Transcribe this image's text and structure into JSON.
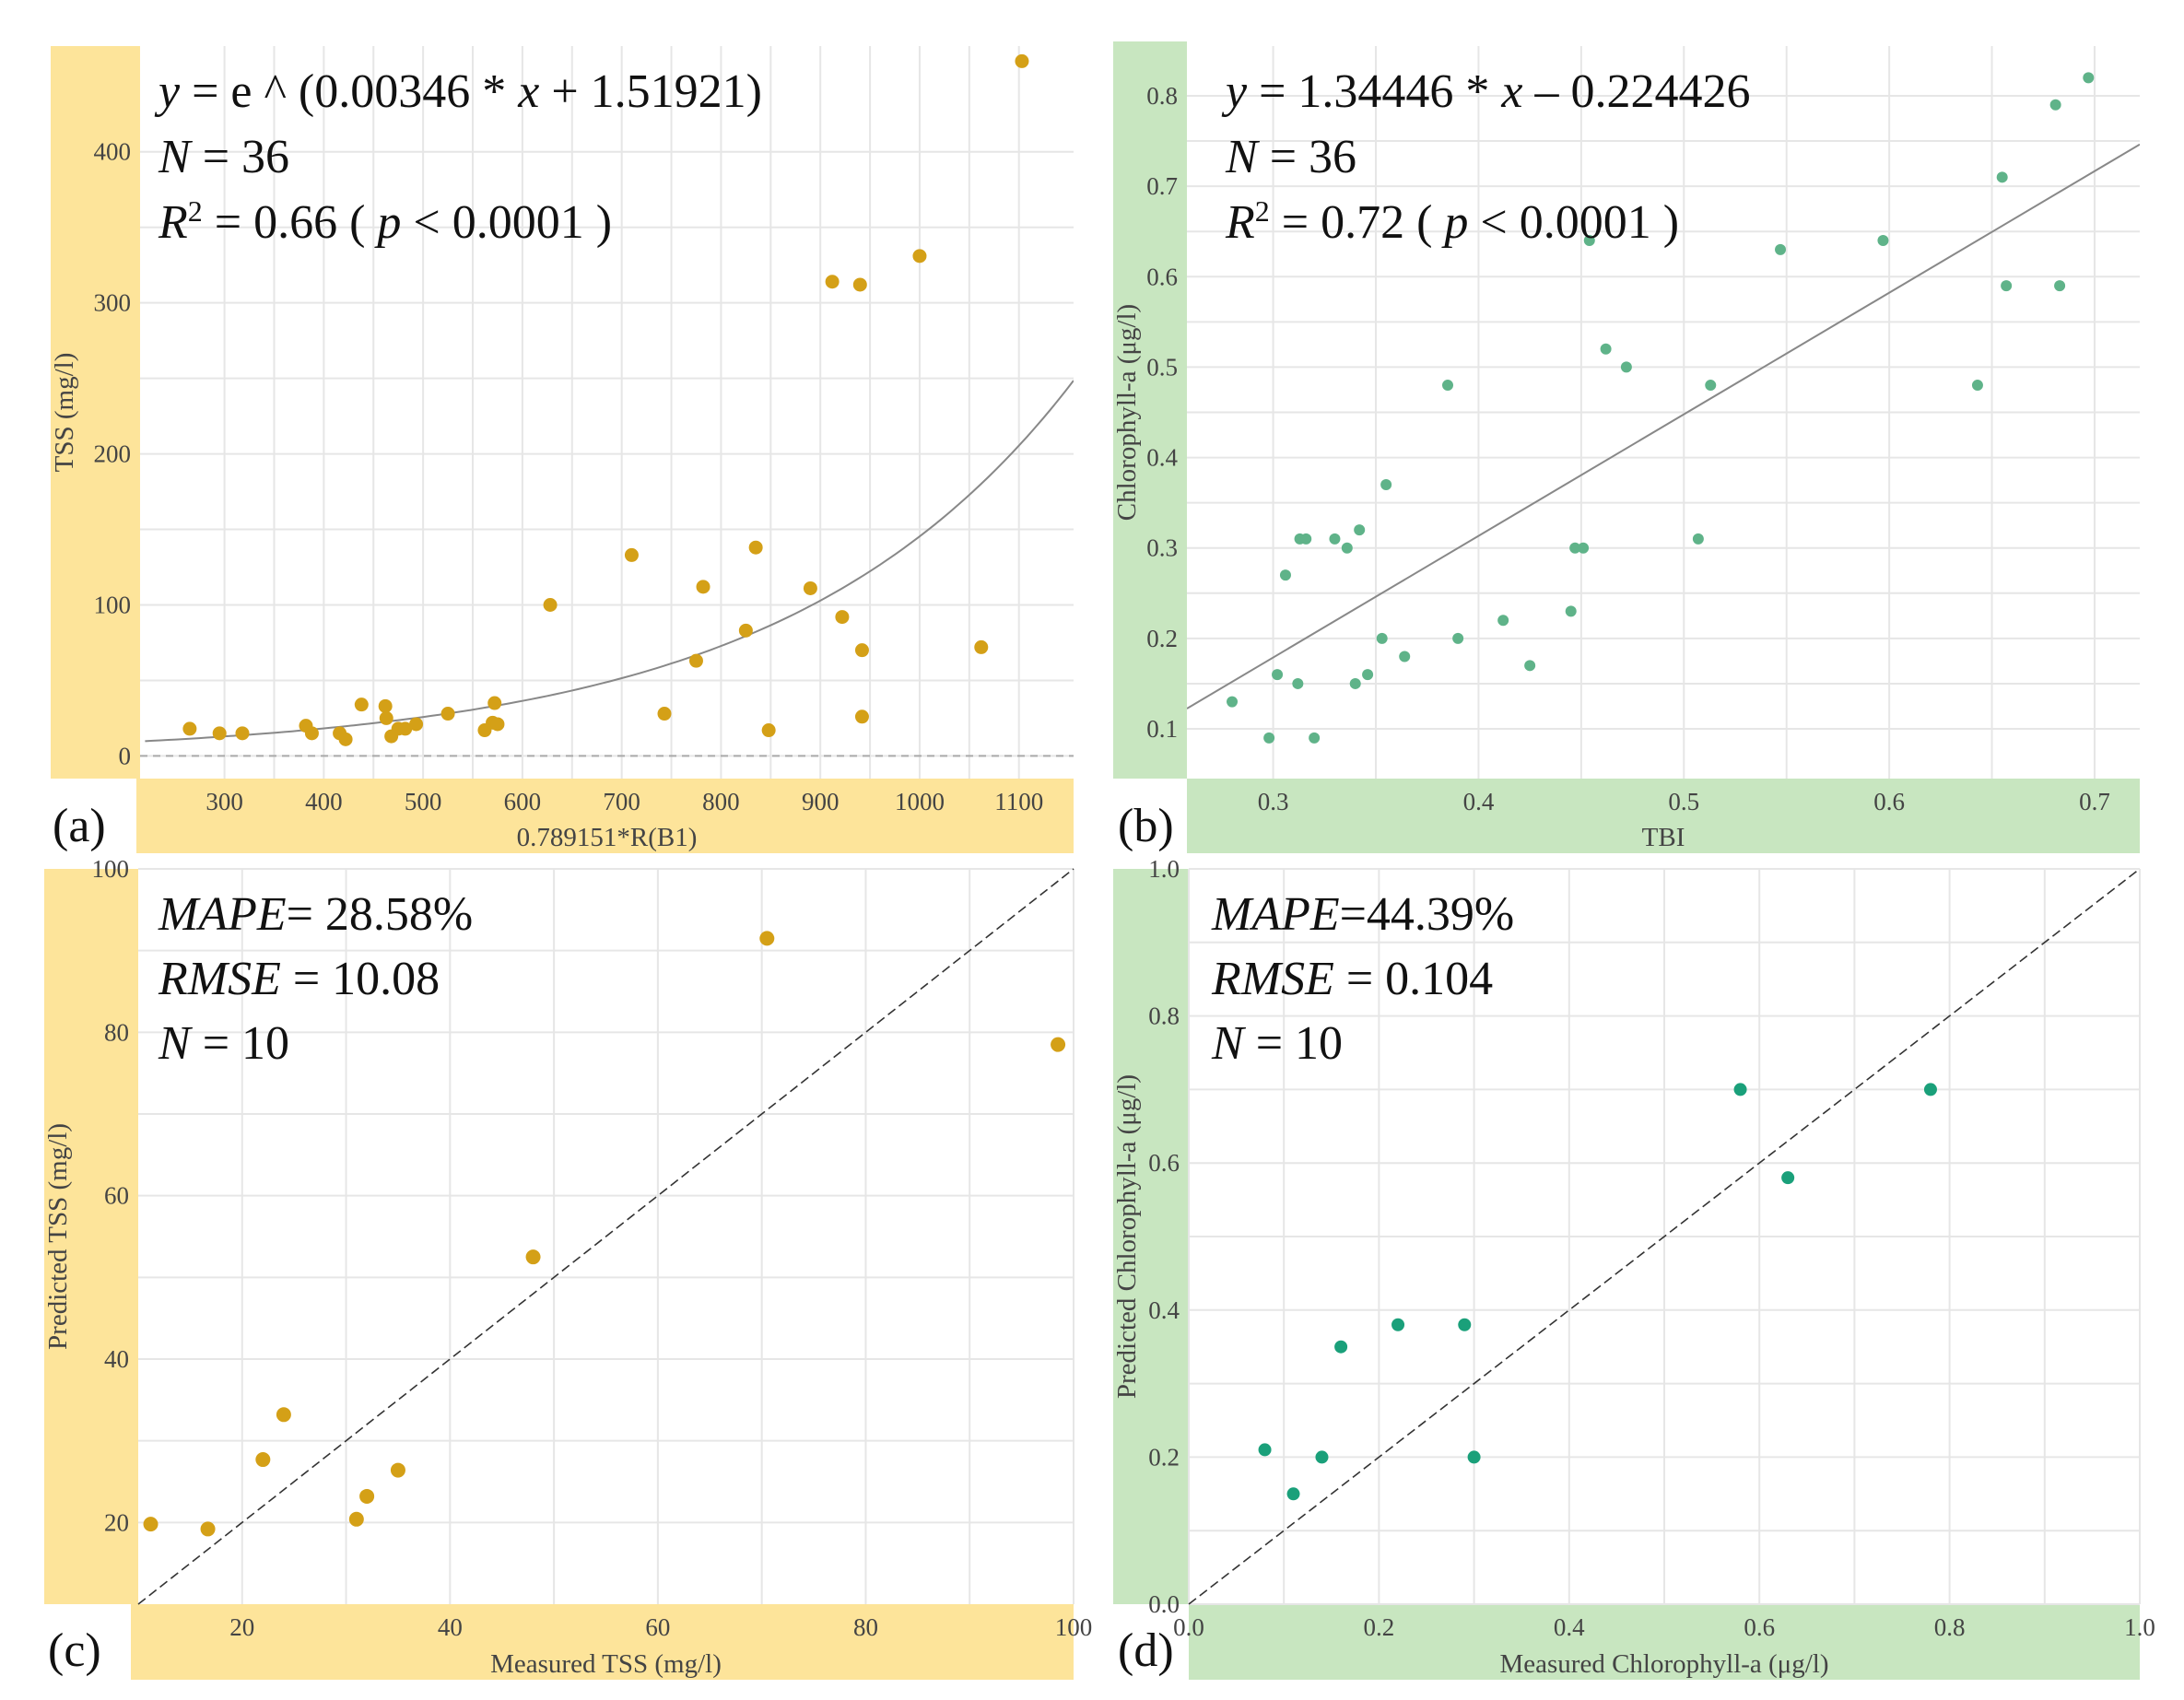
{
  "colors": {
    "tss_panel": "#fde49a",
    "chl_panel": "#c8e6c0",
    "tss_point": "#d4a017",
    "chl_point_b": "#5fb389",
    "chl_point_d": "#1aa07a",
    "fit_line": "#888888"
  },
  "chart_data": [
    {
      "panel": "(a)",
      "type": "scatter",
      "xlabel": "0.789151*R(B1)",
      "ylabel": "TSS (mg/l)",
      "xlim": [
        215,
        1155
      ],
      "ylim": [
        -15,
        470
      ],
      "xticks": [
        300,
        400,
        500,
        600,
        700,
        800,
        900,
        1000,
        1100
      ],
      "yticks": [
        0,
        100,
        200,
        300,
        400
      ],
      "annotation": [
        "y = e ^ (0.00346 * x + 1.51921)",
        "N = 36",
        "R² = 0.66 ( p < 0.0001 )"
      ],
      "fit": {
        "kind": "exp",
        "a": 0.00346,
        "b": 1.51921
      },
      "hline": 0,
      "points": [
        [
          265,
          18
        ],
        [
          295,
          15
        ],
        [
          318,
          15
        ],
        [
          382,
          20
        ],
        [
          388,
          15
        ],
        [
          416,
          15
        ],
        [
          422,
          11
        ],
        [
          438,
          34
        ],
        [
          462,
          33
        ],
        [
          463,
          25
        ],
        [
          468,
          13
        ],
        [
          475,
          18
        ],
        [
          482,
          18
        ],
        [
          493,
          21
        ],
        [
          525,
          28
        ],
        [
          562,
          17
        ],
        [
          570,
          22
        ],
        [
          572,
          35
        ],
        [
          575,
          21
        ],
        [
          628,
          100
        ],
        [
          710,
          133
        ],
        [
          743,
          28
        ],
        [
          775,
          63
        ],
        [
          782,
          112
        ],
        [
          825,
          83
        ],
        [
          835,
          138
        ],
        [
          848,
          17
        ],
        [
          890,
          111
        ],
        [
          912,
          314
        ],
        [
          922,
          92
        ],
        [
          940,
          312
        ],
        [
          942,
          70
        ],
        [
          942,
          26
        ],
        [
          1000,
          331
        ],
        [
          1062,
          72
        ],
        [
          1103,
          460
        ]
      ]
    },
    {
      "panel": "(b)",
      "type": "scatter",
      "xlabel": "TBI",
      "ylabel": "Chlorophyll-a (μg/l)",
      "xlim": [
        0.258,
        0.722
      ],
      "ylim": [
        0.045,
        0.855
      ],
      "xticks": [
        0.3,
        0.4,
        0.5,
        0.6,
        0.7
      ],
      "ytick_labels": [
        "0.1",
        "0.2",
        "0.3",
        "0.4",
        "0.5",
        "0.6",
        "0.7",
        "0.8"
      ],
      "annotation": [
        "y = 1.34446 * x – 0.224426",
        "N = 36",
        "R² = 0.72 ( p < 0.0001 )"
      ],
      "fit": {
        "kind": "linear",
        "slope": 1.34446,
        "intercept": -0.224426
      },
      "points": [
        [
          0.28,
          0.13
        ],
        [
          0.298,
          0.09
        ],
        [
          0.302,
          0.16
        ],
        [
          0.306,
          0.27
        ],
        [
          0.312,
          0.15
        ],
        [
          0.313,
          0.31
        ],
        [
          0.316,
          0.31
        ],
        [
          0.32,
          0.09
        ],
        [
          0.33,
          0.31
        ],
        [
          0.336,
          0.3
        ],
        [
          0.34,
          0.15
        ],
        [
          0.342,
          0.32
        ],
        [
          0.346,
          0.16
        ],
        [
          0.353,
          0.2
        ],
        [
          0.355,
          0.37
        ],
        [
          0.364,
          0.18
        ],
        [
          0.385,
          0.48
        ],
        [
          0.39,
          0.2
        ],
        [
          0.412,
          0.22
        ],
        [
          0.425,
          0.17
        ],
        [
          0.445,
          0.23
        ],
        [
          0.447,
          0.3
        ],
        [
          0.451,
          0.3
        ],
        [
          0.454,
          0.64
        ],
        [
          0.462,
          0.52
        ],
        [
          0.472,
          0.5
        ],
        [
          0.507,
          0.31
        ],
        [
          0.513,
          0.48
        ],
        [
          0.547,
          0.63
        ],
        [
          0.597,
          0.64
        ],
        [
          0.643,
          0.48
        ],
        [
          0.655,
          0.71
        ],
        [
          0.657,
          0.59
        ],
        [
          0.681,
          0.79
        ],
        [
          0.683,
          0.59
        ],
        [
          0.697,
          0.82
        ]
      ]
    },
    {
      "panel": "(c)",
      "type": "scatter",
      "xlabel": "Measured TSS (mg/l)",
      "ylabel": "Predicted TSS (mg/l)",
      "xlim": [
        10,
        100
      ],
      "ylim": [
        10,
        100
      ],
      "xticks": [
        20,
        40,
        60,
        80,
        100
      ],
      "yticks": [
        20,
        40,
        60,
        80,
        100
      ],
      "annotation": [
        "MAPE= 28.58%",
        "RMSE = 10.08",
        "N = 10"
      ],
      "fit": {
        "kind": "identity"
      },
      "points": [
        [
          11.2,
          19.8
        ],
        [
          16.7,
          19.2
        ],
        [
          22.0,
          27.7
        ],
        [
          24.0,
          33.2
        ],
        [
          31.0,
          20.4
        ],
        [
          32.0,
          23.2
        ],
        [
          35.0,
          26.4
        ],
        [
          48.0,
          52.5
        ],
        [
          70.5,
          91.5
        ],
        [
          98.5,
          78.5
        ]
      ]
    },
    {
      "panel": "(d)",
      "type": "scatter",
      "xlabel": "Measured Chlorophyll-a (μg/l)",
      "ylabel": "Predicted Chlorophyll-a (μg/l)",
      "xlim": [
        0.0,
        1.0
      ],
      "ylim": [
        0.0,
        1.0
      ],
      "xtick_labels": [
        "0.0",
        "0.2",
        "0.4",
        "0.6",
        "0.8",
        "1.0"
      ],
      "ytick_labels": [
        "0.0",
        "0.2",
        "0.4",
        "0.6",
        "0.8",
        "1.0"
      ],
      "annotation": [
        "MAPE=44.39%",
        "RMSE = 0.104",
        "N = 10"
      ],
      "fit": {
        "kind": "identity"
      },
      "points": [
        [
          0.08,
          0.21
        ],
        [
          0.11,
          0.15
        ],
        [
          0.14,
          0.2
        ],
        [
          0.16,
          0.35
        ],
        [
          0.22,
          0.38
        ],
        [
          0.29,
          0.38
        ],
        [
          0.3,
          0.2
        ],
        [
          0.58,
          0.7
        ],
        [
          0.63,
          0.58
        ],
        [
          0.78,
          0.7
        ]
      ]
    }
  ]
}
